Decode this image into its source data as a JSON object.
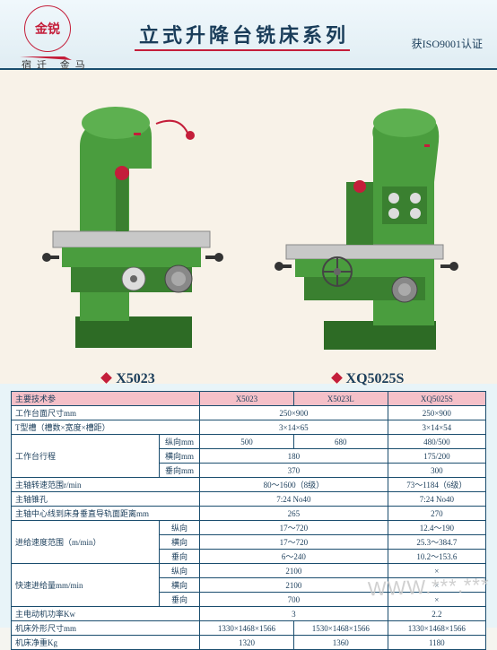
{
  "header": {
    "logo_text": "金锐",
    "brand_sub": "宿迁    金马",
    "title": "立式升降台铣床系列",
    "cert": "获ISO9001认证",
    "logo_border_color": "#c41e3a",
    "title_color": "#1a3d5a"
  },
  "products": {
    "left": {
      "model": "X5023"
    },
    "right": {
      "model": "XQ5025S"
    },
    "machine_colors": {
      "body": "#4a9d3e",
      "body_dark": "#2d6b25",
      "table": "#c8c8c8",
      "handle": "#333",
      "accent": "#c41e3a"
    }
  },
  "table": {
    "header_bg": "#f5c0c8",
    "border": "#1a4d6e",
    "cols": [
      "X5023",
      "X5023L",
      "XQ5025S"
    ],
    "param_header": "主要技术参",
    "rows": [
      {
        "label": "工作台面尺寸mm",
        "vals": [
          "250×900",
          "",
          "250×900"
        ],
        "span12": true
      },
      {
        "label": "T型槽（槽数×宽度×槽距）",
        "vals": [
          "3×14×65",
          "",
          "3×14×54"
        ],
        "span12": true
      },
      {
        "label": "工作台行程",
        "sub": "纵向mm",
        "vals": [
          "500",
          "680",
          "480/500"
        ]
      },
      {
        "label": "",
        "sub": "横向mm",
        "vals": [
          "180",
          "",
          "175/200"
        ],
        "span12": true
      },
      {
        "label": "",
        "sub": "垂向mm",
        "vals": [
          "370",
          "",
          "300"
        ],
        "span12": true
      },
      {
        "label": "主轴转速范围r/min",
        "vals": [
          "80～1600（8级）",
          "",
          "73～1184（6级）"
        ],
        "span12": true
      },
      {
        "label": "主轴锥孔",
        "vals": [
          "7:24 No40",
          "",
          "7:24 No40"
        ],
        "span12": true
      },
      {
        "label": "主轴中心线到床身垂直导轨面距离mm",
        "vals": [
          "265",
          "",
          "270"
        ],
        "span12": true
      },
      {
        "label": "进给速度范围（m/min）",
        "sub": "纵向",
        "vals": [
          "17～720",
          "",
          "12.4～190"
        ],
        "span12": true
      },
      {
        "label": "",
        "sub": "横向",
        "vals": [
          "17～720",
          "",
          "25.3～384.7"
        ],
        "span12": true
      },
      {
        "label": "",
        "sub": "垂向",
        "vals": [
          "6～240",
          "",
          "10.2～153.6"
        ],
        "span12": true
      },
      {
        "label": "快速进给量mm/min",
        "sub": "纵向",
        "vals": [
          "2100",
          "",
          "×"
        ],
        "span12": true
      },
      {
        "label": "",
        "sub": "横向",
        "vals": [
          "2100",
          "",
          "×"
        ],
        "span12": true
      },
      {
        "label": "",
        "sub": "垂向",
        "vals": [
          "700",
          "",
          "×"
        ],
        "span12": true
      },
      {
        "label": "主电动机功率Kw",
        "vals": [
          "3",
          "",
          "2.2"
        ],
        "span12": true
      },
      {
        "label": "机床外形尺寸mm",
        "vals": [
          "1330×1468×1566",
          "1530×1468×1566",
          "1330×1468×1566"
        ]
      },
      {
        "label": "机床净重Kg",
        "vals": [
          "1320",
          "1360",
          "1180"
        ]
      }
    ]
  },
  "watermark": "WWW.***.***"
}
